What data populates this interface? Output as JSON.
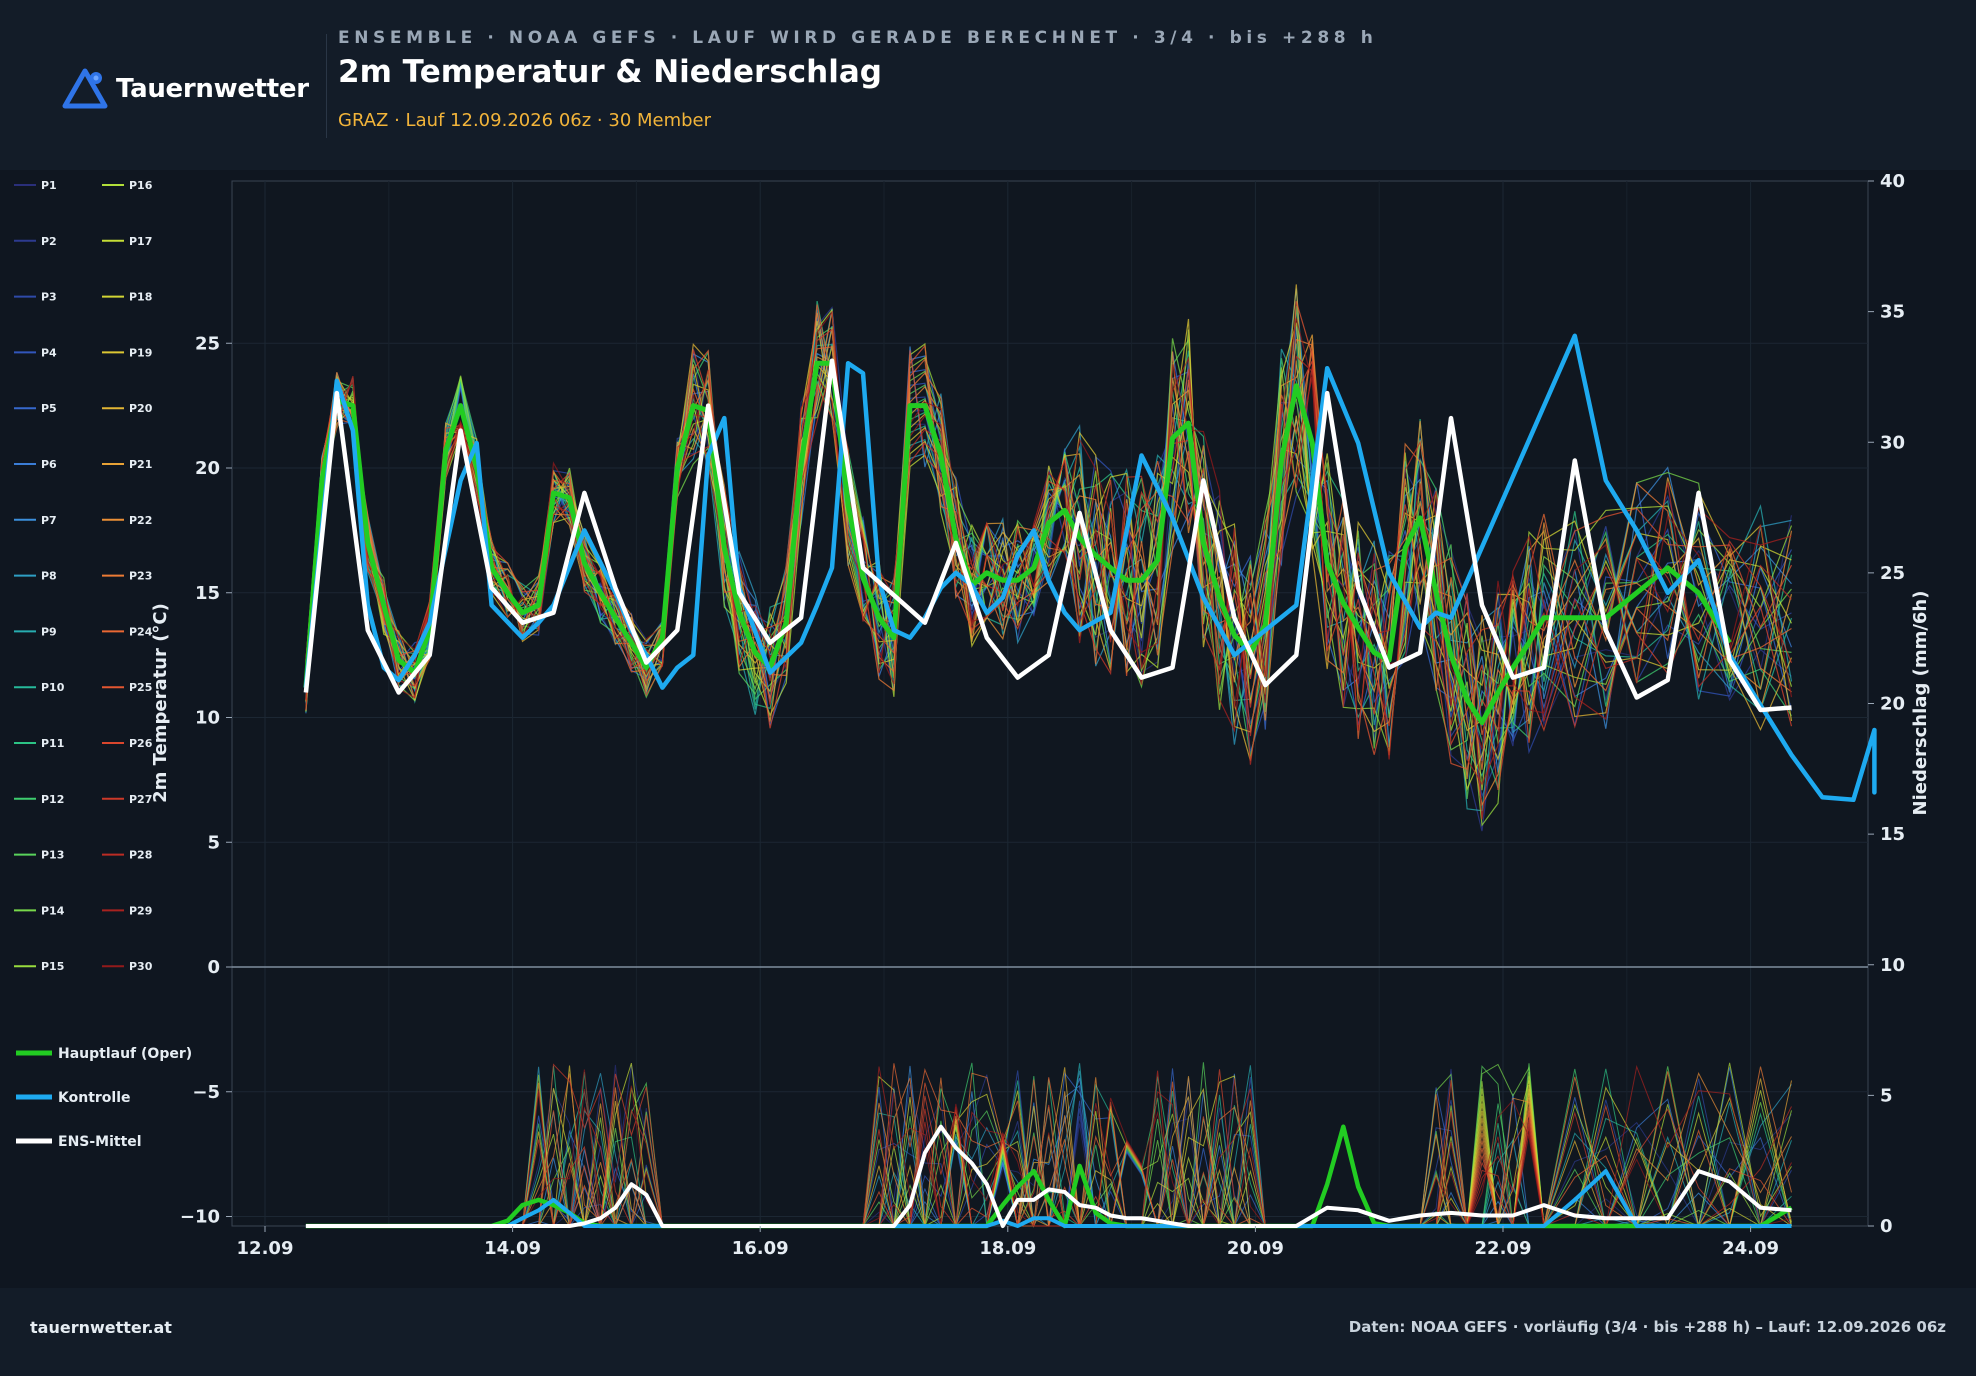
{
  "brand": {
    "name": "Tauernwetter",
    "site": "tauernwetter.at"
  },
  "header": {
    "eyebrow": "ENSEMBLE · NOAA GEFS · LAUF WIRD GERADE BERECHNET · 3/4 · bis +288 h",
    "title": "2m Temperatur & Niederschlag",
    "subtitle": "GRAZ · Lauf 12.09.2026 06z · 30 Member"
  },
  "footer": {
    "credit": "Daten: NOAA GEFS · vorläufig (3/4 · bis +288 h) – Lauf: 12.09.2026 06z"
  },
  "colors": {
    "background": "#0f1620",
    "oper": "#22cc22",
    "control": "#1eaaf0",
    "mean": "#ffffff"
  },
  "chart_data": {
    "type": "line",
    "title": "2m Temperatur & Niederschlag",
    "xlabel": "",
    "ylabel": "2m Temperatur (°C)",
    "y2label": "Niederschlag (mm/6h)",
    "ylim": [
      -13,
      29
    ],
    "y2lim": [
      0,
      40
    ],
    "xlim": [
      -0.05,
      13.0
    ],
    "yticks": [
      -10,
      -5,
      0,
      5,
      10,
      15,
      20,
      25
    ],
    "y2ticks": [
      0,
      5,
      10,
      15,
      20,
      25,
      30,
      35,
      40
    ],
    "xtick_labels": [
      "12.09",
      "14.09",
      "16.09",
      "18.09",
      "20.09",
      "22.09",
      "24.09"
    ],
    "xtick_positions": [
      0,
      2,
      4,
      6,
      8,
      10,
      12
    ],
    "grid": true,
    "legend_position": "left",
    "x_days": [
      0.33,
      0.46,
      0.58,
      0.71,
      0.83,
      0.96,
      1.08,
      1.21,
      1.33,
      1.46,
      1.58,
      1.71,
      1.83,
      1.96,
      2.08,
      2.21,
      2.33,
      2.46,
      2.58,
      2.71,
      2.83,
      2.96,
      3.08,
      3.21,
      3.33,
      3.46,
      3.58,
      3.71,
      3.83,
      3.96,
      4.08,
      4.21,
      4.33,
      4.46,
      4.58,
      4.71,
      4.83,
      4.96,
      5.08,
      5.21,
      5.33,
      5.46,
      5.58,
      5.71,
      5.83,
      5.96,
      6.08,
      6.21,
      6.33,
      6.46,
      6.58,
      6.71,
      6.83,
      6.96,
      7.08,
      7.21,
      7.33,
      7.46,
      7.58,
      7.71,
      7.83,
      7.96,
      8.08,
      8.21,
      8.33,
      8.46,
      8.58,
      8.71,
      8.83,
      8.96,
      9.08,
      9.21,
      9.33,
      9.46,
      9.58,
      9.71,
      9.83,
      9.96,
      10.08,
      10.21,
      10.33,
      10.58,
      10.83,
      11.08,
      11.33,
      11.58,
      11.83,
      12.08,
      12.33
    ],
    "series": [
      {
        "name": "Hauptlauf (Oper)",
        "color": "#22cc22",
        "temp": [
          11.2,
          19.5,
          22.7,
          22.5,
          17,
          14.5,
          12.3,
          11.8,
          13.5,
          20.7,
          22.5,
          20,
          16,
          15,
          14.2,
          14.5,
          19,
          18.8,
          16.2,
          15,
          14,
          13,
          12,
          13.2,
          20,
          22.5,
          22.3,
          16.8,
          14.2,
          12.6,
          12,
          13.8,
          20.2,
          24.2,
          24.2,
          18.5,
          15.6,
          14,
          13.2,
          22.5,
          22.5,
          20.5,
          17.2,
          15.3,
          15.8,
          15.5,
          15.5,
          16,
          17.8,
          18.3,
          17.2,
          16.5,
          16,
          15.5,
          15.5,
          16.3,
          21.2,
          21.8,
          17,
          14.8,
          13.3,
          12.6,
          13.7,
          20.3,
          23.3,
          21,
          16.2,
          14.6,
          13.6,
          12.6,
          12.3,
          16.8,
          18,
          15,
          12.5,
          10.7,
          9.8,
          11,
          12,
          13,
          14,
          14,
          14,
          15,
          16,
          15,
          13
        ],
        "precip": [
          0,
          0,
          0,
          0,
          0,
          0,
          0,
          0,
          0,
          0,
          0,
          0,
          0,
          0.2,
          0.8,
          1.0,
          0.8,
          0.5,
          0.1,
          0,
          0,
          0,
          0,
          0,
          0,
          0,
          0,
          0,
          0,
          0,
          0,
          0,
          0,
          0,
          0,
          0,
          0,
          0,
          0,
          0,
          0,
          0,
          0,
          0,
          0,
          0.8,
          1.5,
          2.1,
          1.0,
          0,
          2.3,
          0.5,
          0.1,
          0,
          0,
          0,
          0,
          0,
          0,
          0,
          0,
          0,
          0,
          0,
          0,
          0,
          1.6,
          3.8,
          1.5,
          0.1,
          0,
          0,
          0,
          0,
          0,
          0,
          0,
          0,
          0,
          0,
          0,
          0,
          0,
          0,
          0,
          0,
          0,
          0,
          0.7
        ]
      },
      {
        "name": "Kontrolle",
        "color": "#1eaaf0",
        "temp": [
          11.2,
          23.5,
          21.5,
          14.5,
          12,
          11.5,
          12.5,
          13.8,
          19.5,
          21,
          14.5,
          13.2,
          13.8,
          14.5,
          17.5,
          15,
          13.5,
          12.5,
          11.2,
          12,
          12.5,
          20.5,
          22,
          15.2,
          11.8,
          13,
          14.5,
          16,
          24.2,
          23.8,
          15.5,
          13.5,
          13.2,
          14,
          15.2,
          15.8,
          15.3,
          14.2,
          14.8,
          16.5,
          17.5,
          15.5,
          14.2,
          13.5,
          14.2,
          20.5,
          18,
          14.8,
          12.5,
          13.5,
          14.5,
          24,
          21,
          15.8,
          13.6,
          14.2,
          14,
          25.3,
          19.5,
          17.5,
          15,
          16.3,
          12.5,
          10.5,
          8.5,
          6.8,
          6.7,
          9.5,
          7,
          8.6
        ],
        "temp_x": [
          0.33,
          0.58,
          0.71,
          0.83,
          0.96,
          1.08,
          1.21,
          1.33,
          1.58,
          1.71,
          1.83,
          2.08,
          2.21,
          2.33,
          2.58,
          2.83,
          2.96,
          3.08,
          3.21,
          3.33,
          3.46,
          3.58,
          3.71,
          3.83,
          4.08,
          4.33,
          4.46,
          4.58,
          4.71,
          4.83,
          4.96,
          5.08,
          5.21,
          5.33,
          5.46,
          5.58,
          5.71,
          5.83,
          5.96,
          6.08,
          6.21,
          6.33,
          6.46,
          6.58,
          6.83,
          7.08,
          7.33,
          7.58,
          7.83,
          8.08,
          8.33,
          8.58,
          8.83,
          9.08,
          9.33,
          9.46,
          9.58,
          10.58,
          10.83,
          11.08,
          11.33,
          11.58,
          11.83,
          12.08,
          12.33,
          12.58,
          12.83,
          13.0,
          13.0,
          13.0
        ],
        "precip": [
          0,
          0,
          0,
          0,
          0,
          0,
          0,
          0,
          0,
          0,
          0,
          0,
          0,
          0,
          0.3,
          0.6,
          1.0,
          0.5,
          0,
          0,
          0,
          0,
          0,
          0,
          0,
          0,
          0,
          0,
          0,
          0,
          0,
          0,
          0,
          0,
          0,
          0,
          0,
          0,
          0,
          0,
          0,
          0,
          0,
          0,
          0,
          0.2,
          0,
          0.3,
          0.3,
          0,
          0,
          0,
          0,
          0,
          0,
          0,
          0,
          0,
          0,
          0,
          0,
          0,
          0,
          0,
          0,
          0,
          0,
          0,
          0,
          0,
          0,
          0,
          0,
          0,
          0,
          0,
          0,
          0,
          0,
          0,
          0,
          1.0,
          2.1,
          0,
          0,
          0,
          0,
          0,
          0
        ]
      },
      {
        "name": "ENS-Mittel",
        "color": "#ffffff",
        "temp": [
          11.0,
          23.0,
          13.5,
          11.0,
          12.5,
          21.5,
          15.2,
          13.8,
          14.2,
          19.0,
          15.2,
          12.2,
          13.5,
          22.5,
          15.0,
          13.0,
          14.0,
          24.3,
          16.0,
          13.8,
          17.0,
          13.2,
          11.6,
          12.5,
          18.2,
          13.5,
          11.6,
          12.0,
          19.5,
          14.0,
          11.3,
          12.5,
          23.0,
          15.2,
          12.0,
          12.6,
          22.0,
          14.5,
          11.6,
          12.0,
          20.3,
          13.5,
          10.8,
          11.5,
          19.0,
          12.3,
          10.3,
          10.4
        ],
        "temp_x": [
          0.33,
          0.58,
          0.83,
          1.08,
          1.33,
          1.58,
          1.83,
          2.08,
          2.33,
          2.58,
          2.83,
          3.08,
          3.33,
          3.58,
          3.83,
          4.08,
          4.33,
          4.58,
          4.83,
          5.33,
          5.58,
          5.83,
          6.08,
          6.33,
          6.58,
          6.83,
          7.08,
          7.33,
          7.58,
          7.83,
          8.08,
          8.33,
          8.58,
          8.83,
          9.08,
          9.33,
          9.58,
          9.83,
          10.08,
          10.33,
          10.58,
          10.83,
          11.08,
          11.33,
          11.58,
          11.83,
          12.08,
          12.33
        ],
        "precip": [
          0,
          0,
          0,
          0,
          0,
          0,
          0,
          0,
          0,
          0.1,
          0.3,
          0.7,
          1.6,
          1.2,
          0,
          0,
          0,
          0,
          0,
          0,
          0,
          0,
          0.8,
          2.8,
          3.8,
          3.0,
          2.4,
          1.6,
          0,
          1.0,
          1.0,
          1.4,
          1.3,
          0.8,
          0.7,
          0.4,
          0.3,
          0.3,
          0.2,
          0.1,
          0,
          0,
          0,
          0,
          0.7,
          0.6,
          0.2,
          0.4,
          0.5,
          0.4,
          0.4,
          0.8,
          0.4,
          0.3,
          0.3,
          2.1,
          1.7,
          0.7,
          0.6
        ],
        "precip_x": [
          0.33,
          1.08,
          1.33,
          1.58,
          1.83,
          2.08,
          2.21,
          2.33,
          2.46,
          2.58,
          2.71,
          2.83,
          2.96,
          3.08,
          3.21,
          3.83,
          4.08,
          4.33,
          4.58,
          4.83,
          4.96,
          5.08,
          5.21,
          5.33,
          5.46,
          5.58,
          5.71,
          5.83,
          5.96,
          6.08,
          6.21,
          6.33,
          6.46,
          6.58,
          6.71,
          6.83,
          6.96,
          7.08,
          7.21,
          7.33,
          7.46,
          7.58,
          7.83,
          8.33,
          8.58,
          8.83,
          9.08,
          9.33,
          9.58,
          9.83,
          10.08,
          10.33,
          10.58,
          10.83,
          11.33,
          11.58,
          11.83,
          12.08,
          12.33
        ]
      }
    ],
    "members": [
      "P1",
      "P2",
      "P3",
      "P4",
      "P5",
      "P6",
      "P7",
      "P8",
      "P9",
      "P10",
      "P11",
      "P12",
      "P13",
      "P14",
      "P15",
      "P16",
      "P17",
      "P18",
      "P19",
      "P20",
      "P21",
      "P22",
      "P23",
      "P24",
      "P25",
      "P26",
      "P27",
      "P28",
      "P29",
      "P30"
    ],
    "member_colors": [
      "#2a2f7a",
      "#2d3a8f",
      "#2f4aa8",
      "#3256bc",
      "#3768cc",
      "#3b7dd6",
      "#3c8fdb",
      "#2f9fc4",
      "#27adb0",
      "#26b99a",
      "#2cc385",
      "#3fcd6f",
      "#59d35b",
      "#78d94a",
      "#98dc3e",
      "#b2df3a",
      "#c5dd36",
      "#d2d534",
      "#dcc733",
      "#e2b534",
      "#e8a236",
      "#eb8f36",
      "#ec7b35",
      "#ea6833",
      "#e35631",
      "#d9462d",
      "#cc3929",
      "#bc2c24",
      "#a8221f",
      "#931a1b"
    ],
    "member_spread": {
      "temp_min": [
        10.5,
        20.5,
        13.0,
        10.5,
        11.8,
        17.8,
        13.0,
        12.8,
        13.0,
        16.0,
        13.5,
        11.2,
        12.8,
        20.0,
        13.5,
        11.2,
        12.5,
        22.0,
        14.2,
        10.0,
        12.5,
        11.0,
        8.0,
        10.5,
        13.5,
        9.5,
        8.5,
        9.8,
        15.5,
        10.5,
        7.2,
        9.5,
        14.0,
        9.5,
        6.4,
        7.2,
        15.0,
        9.5,
        6.8,
        8.0,
        17.0,
        9.5,
        4.5,
        5.5,
        16.5,
        5.2,
        4.2
      ],
      "temp_max": [
        11.5,
        23.7,
        15.5,
        11.8,
        13.5,
        23.8,
        16.2,
        14.5,
        15.6,
        22.2,
        15.8,
        13.0,
        14.5,
        24.5,
        16.6,
        14.2,
        15.8,
        26.0,
        17.2,
        16.5,
        25.8,
        16.0,
        15.0,
        15.8,
        23.2,
        16.5,
        14.2,
        15.3,
        24.6,
        16.3,
        14.0,
        15.0,
        27.0,
        17.5,
        14.8,
        15.0,
        26.5,
        18.5,
        15.0,
        15.5,
        26.6,
        18.0,
        15.5,
        16.0,
        27.3,
        16.3,
        15.0
      ],
      "precip_peak": [
        0.5,
        0.5,
        0.4,
        0,
        9.3,
        0,
        0,
        12.5,
        6.5,
        9.0,
        13.5,
        3.0,
        2.4,
        14.5,
        6.5,
        9.5,
        7.0,
        12.5,
        9.7,
        6.0,
        5.5,
        13.5,
        9.0,
        19.0,
        17.6,
        0
      ]
    }
  }
}
